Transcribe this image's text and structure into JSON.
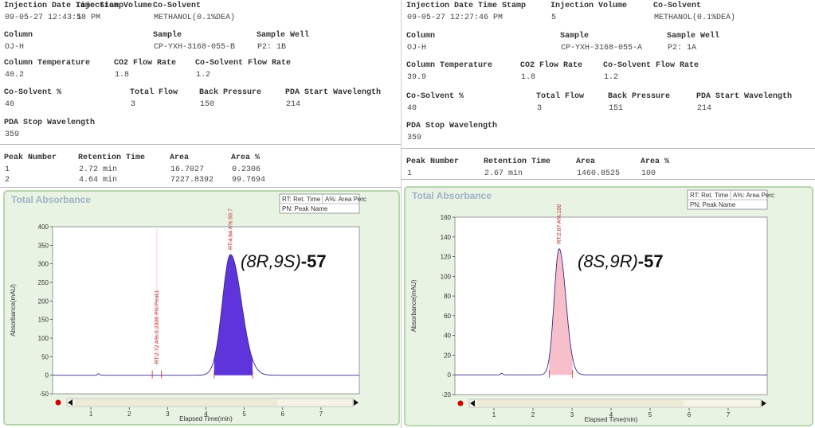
{
  "left": {
    "info_rows": [
      [
        {
          "label": "Injection Date Time Stamp",
          "value": "09-05-27 12:43:18 PM"
        },
        {
          "label": "Injection Volume",
          "value": "5"
        },
        {
          "label": "Co-Solvent",
          "value": "METHANOL(0.1%DEA)"
        }
      ],
      [
        {
          "label": "Column",
          "value": "OJ-H"
        },
        {
          "label": "Sample",
          "value": "CP-YXH-3168-055-B"
        },
        {
          "label": "Sample Well",
          "value": "P2: 1B"
        }
      ],
      [
        {
          "label": "Column Temperature",
          "value": "40.2"
        },
        {
          "label": "CO2 Flow Rate",
          "value": "1.8"
        },
        {
          "label": "Co-Solvent Flow Rate",
          "value": "1.2"
        }
      ],
      [
        {
          "label": "Co-Solvent %",
          "value": "40"
        },
        {
          "label": "Total Flow",
          "value": "3"
        },
        {
          "label": "Back Pressure",
          "value": "150"
        },
        {
          "label": "PDA Start Wavelength",
          "value": "214"
        }
      ],
      [
        {
          "label": "PDA Stop Wavelength",
          "value": "359"
        }
      ]
    ],
    "peak_table": {
      "headers": [
        "Peak Number",
        "Retention Time",
        "Area",
        "Area %"
      ],
      "rows": [
        [
          "1",
          "2.72 min",
          "16.7027",
          "0.2306"
        ],
        [
          "2",
          "4.64 min",
          "7227.8392",
          "99.7694"
        ]
      ]
    },
    "compound": {
      "config": "(8R,9S)",
      "suffix": "-57"
    }
  },
  "right": {
    "info_rows": [
      [
        {
          "label": "Injection Date Time Stamp",
          "value": "09-05-27 12:27:46 PM"
        },
        {
          "label": "Injection Volume",
          "value": "5"
        },
        {
          "label": "Co-Solvent",
          "value": "METHANOL(0.1%DEA)"
        }
      ],
      [
        {
          "label": "Column",
          "value": "OJ-H"
        },
        {
          "label": "Sample",
          "value": "CP-YXH-3168-055-A"
        },
        {
          "label": "Sample Well",
          "value": "P2: 1A"
        }
      ],
      [
        {
          "label": "Column Temperature",
          "value": "39.9"
        },
        {
          "label": "CO2 Flow Rate",
          "value": "1.8"
        },
        {
          "label": "Co-Solvent Flow Rate",
          "value": "1.2"
        }
      ],
      [
        {
          "label": "Co-Solvent %",
          "value": "40"
        },
        {
          "label": "Total Flow",
          "value": "3"
        },
        {
          "label": "Back Pressure",
          "value": "151"
        },
        {
          "label": "PDA Start Wavelength",
          "value": "214"
        }
      ],
      [
        {
          "label": "PDA Stop Wavelength",
          "value": "359"
        }
      ]
    ],
    "peak_table": {
      "headers": [
        "Peak Number",
        "Retention Time",
        "Area",
        "Area %"
      ],
      "rows": [
        [
          "1",
          "2.67 min",
          "1460.8525",
          "100"
        ]
      ]
    },
    "compound": {
      "config": "(8S,9R)",
      "suffix": "-57"
    }
  },
  "chart_data": [
    {
      "type": "line",
      "title": "Total Absorbance",
      "xlabel": "Elapsed Time(min)",
      "ylabel": "Absorbance(mAU)",
      "xlim": [
        0,
        8
      ],
      "ylim": [
        -50,
        400
      ],
      "xticks": [
        1,
        2,
        3,
        4,
        5,
        6,
        7
      ],
      "yticks": [
        -50,
        0,
        50,
        100,
        150,
        200,
        250,
        300,
        350,
        400
      ],
      "legend": [
        "RT: Ret. Time",
        "A%: Area Perc",
        "PN: Peak Name"
      ],
      "legend_position": "top-right",
      "fill_color": "#4b1fd6",
      "peaks": [
        {
          "rt": 2.72,
          "height": 0,
          "width": 0.1,
          "label": "RT:2.72 A%:0.2306 PN:Peak1"
        },
        {
          "rt": 4.64,
          "height": 325,
          "width": 0.5,
          "label": "RT:4.64 A%:99.7"
        }
      ],
      "small_bumps": [
        {
          "rt": 1.2,
          "height": 4
        }
      ]
    },
    {
      "type": "line",
      "title": "Total Absorbance",
      "xlabel": "Elapsed Time(min)",
      "ylabel": "Absorbance(mAU)",
      "xlim": [
        0,
        8
      ],
      "ylim": [
        -20,
        160
      ],
      "xticks": [
        1,
        2,
        3,
        4,
        5,
        6,
        7
      ],
      "yticks": [
        -20,
        0,
        20,
        40,
        60,
        80,
        100,
        120,
        140,
        160
      ],
      "legend": [
        "RT: Ret. Time",
        "A%: Area Perc",
        "PN: Peak Name"
      ],
      "legend_position": "top-right",
      "fill_color": "#f5b8c4",
      "peaks": [
        {
          "rt": 2.67,
          "height": 128,
          "width": 0.3,
          "label": "RT:2.67 A%:100"
        }
      ],
      "small_bumps": [
        {
          "rt": 1.2,
          "height": 1.5
        }
      ]
    }
  ]
}
